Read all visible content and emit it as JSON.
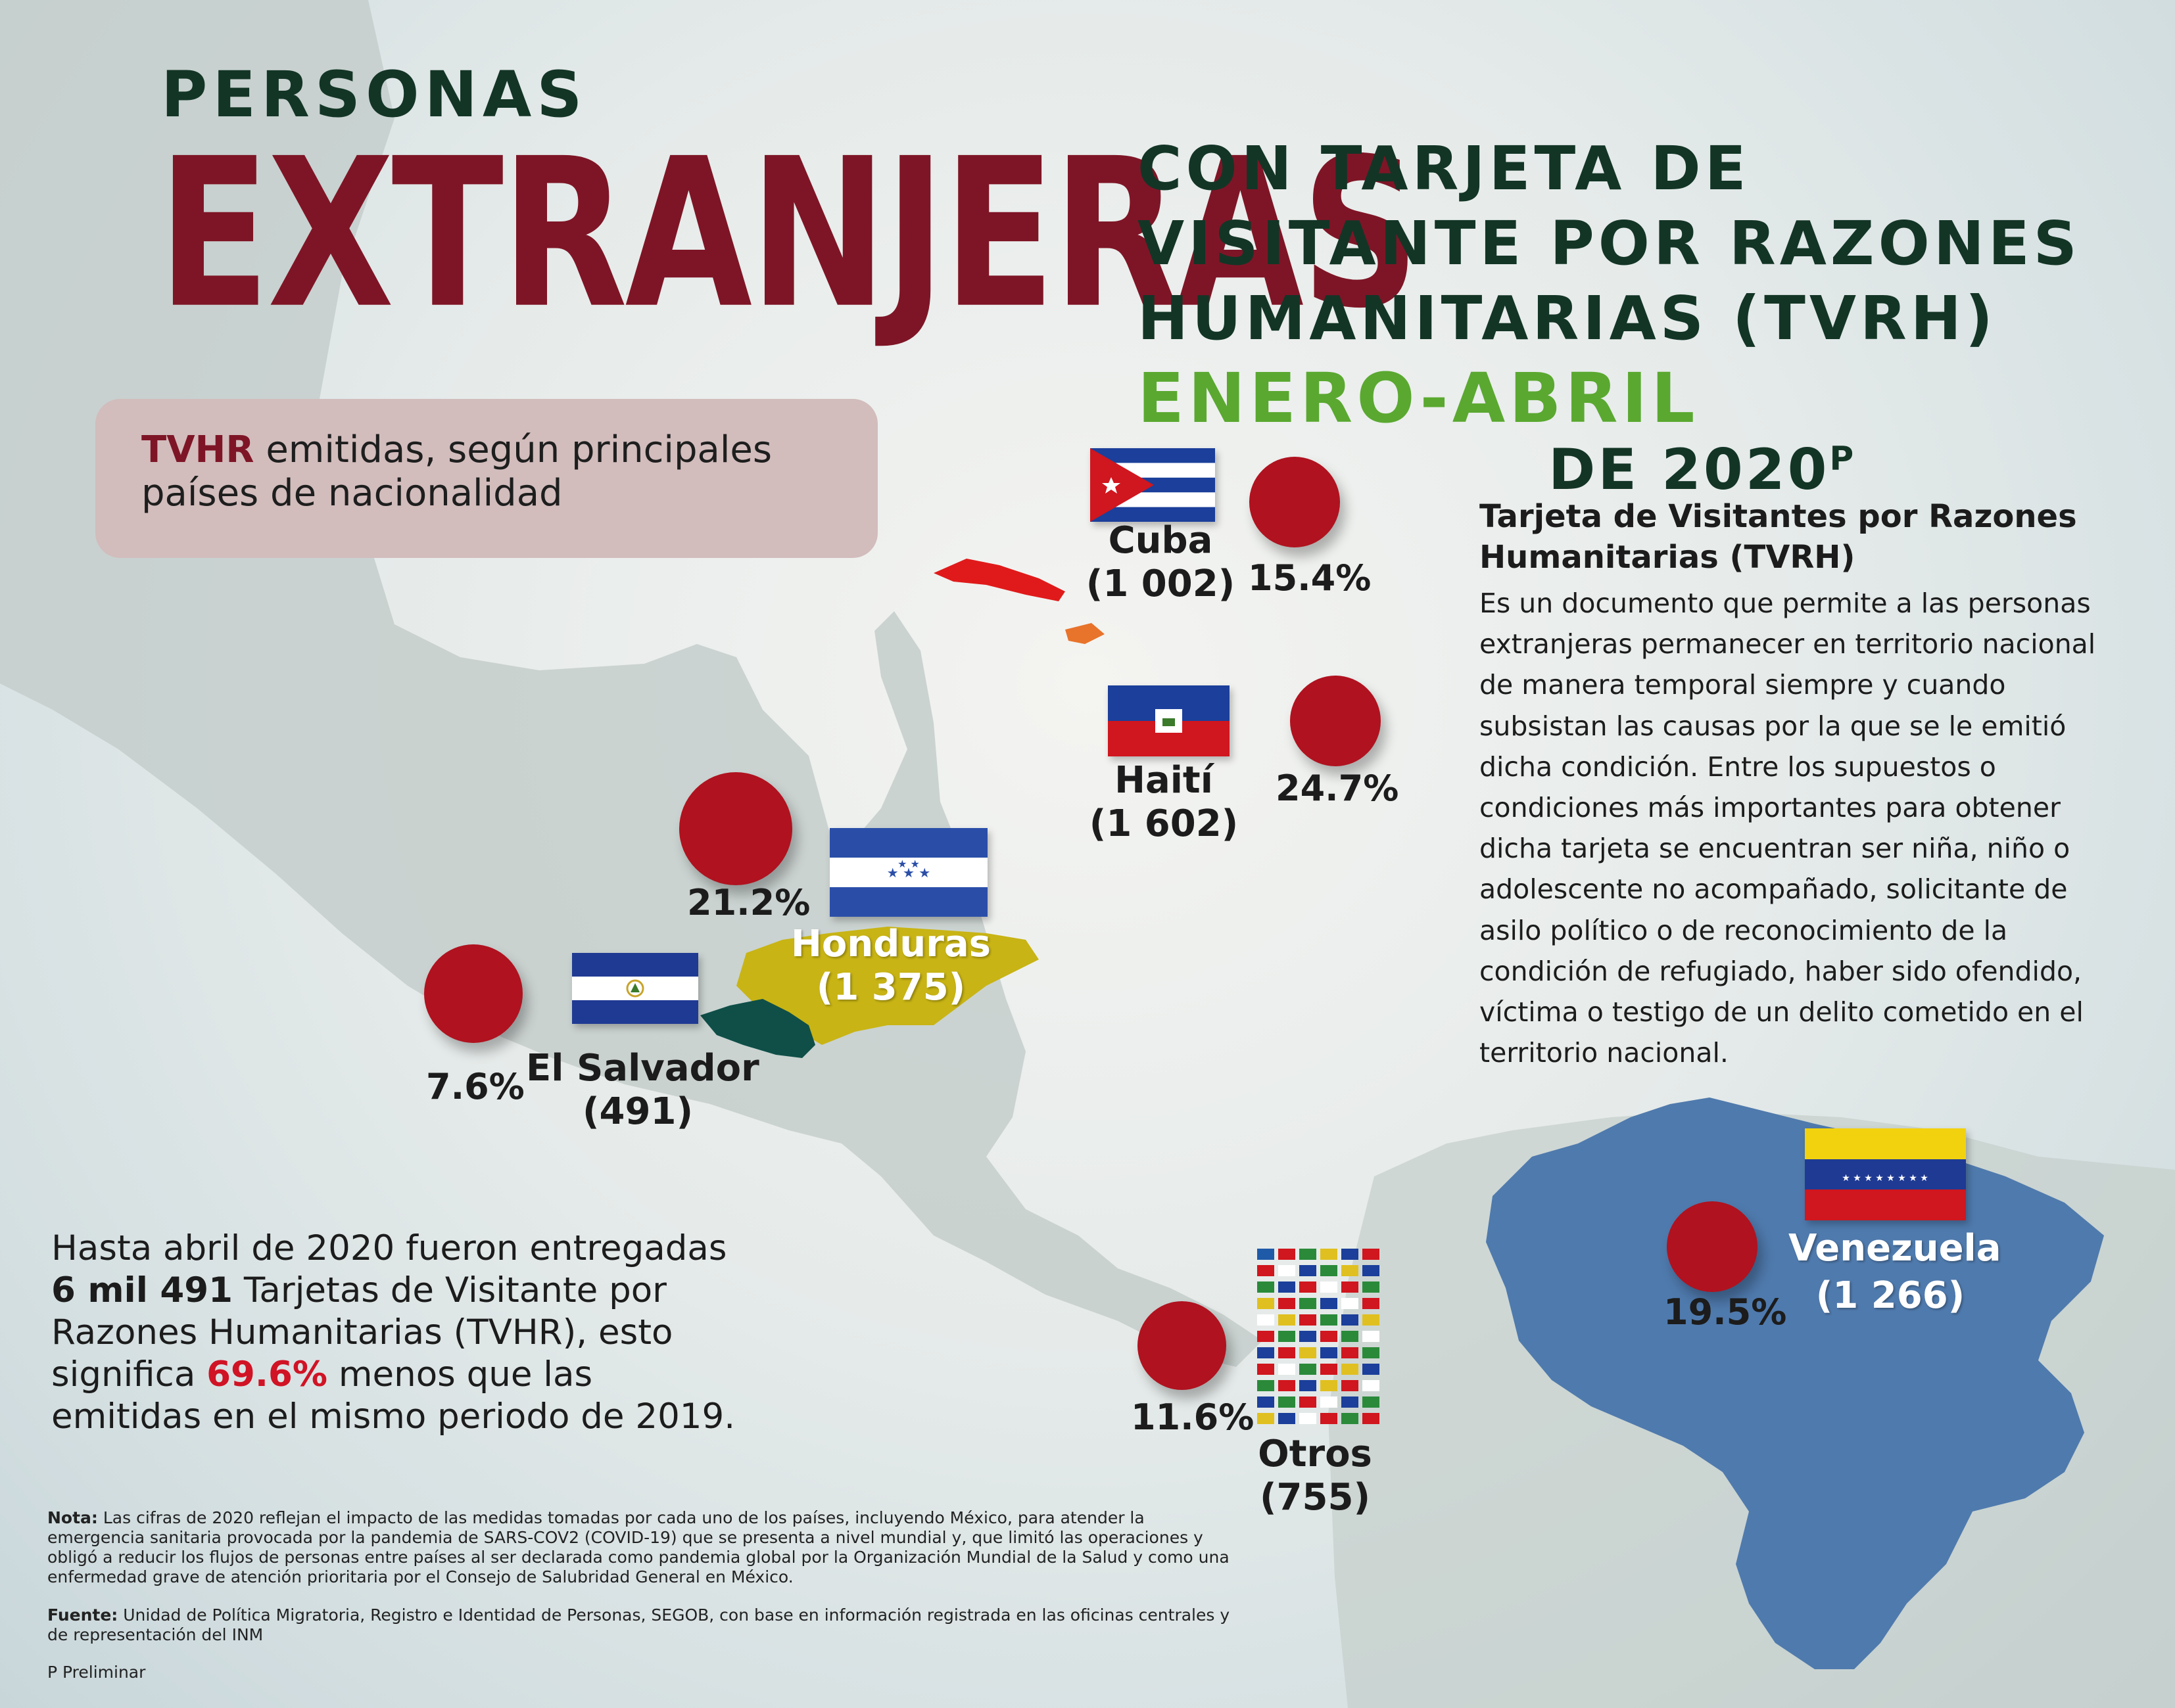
{
  "title": {
    "line1": "PERSONAS",
    "line2": "EXTRANJERAS",
    "sub1": "CON TARJETA DE",
    "sub2": "VISITANTE POR RAZONES",
    "sub3": "HUMANITARIAS (TVRH)",
    "period": "ENERO-ABRIL",
    "year": "DE 2020",
    "year_mark": "P"
  },
  "label_box": {
    "highlight": "TVHR",
    "text": " emitidas, según principales países de nacionalidad"
  },
  "countries": {
    "cuba": {
      "name": "Cuba",
      "count": "(1 002)",
      "pct": "15.4%"
    },
    "haiti": {
      "name": "Haití",
      "count": "(1 602)",
      "pct": "24.7%"
    },
    "honduras": {
      "name": "Honduras",
      "count": "(1 375)",
      "pct": "21.2%"
    },
    "el_salvador": {
      "name": "El Salvador",
      "count": "(491)",
      "pct": "7.6%"
    },
    "otros": {
      "name": "Otros",
      "count": "(755)",
      "pct": "11.6%"
    },
    "venezuela": {
      "name": "Venezuela",
      "count": "(1 266)",
      "pct": "19.5%"
    }
  },
  "description": {
    "title": "Tarjeta de Visitantes por Razones Humanitarias (TVRH)",
    "body": "Es un documento que permite a las personas extranjeras permanecer en territorio nacional de manera temporal siempre y cuando subsistan las causas por la que se le emitió dicha condición. Entre los supuestos o condiciones más importantes para obtener dicha tarjeta se encuentran ser niña, niño o adolescente no acompañado, solicitante de asilo político o de reconocimiento de la condición de refugiado, haber sido ofendido, víctima o testigo de un delito cometido en el territorio nacional."
  },
  "summary": {
    "part1": "Hasta abril de 2020 fueron entregadas ",
    "bold": "6 mil 491",
    "part2": " Tarjetas de Visitante por Razones Humanitarias (TVHR), esto significa ",
    "red": "69.6%",
    "part3": " menos que las emitidas en el mismo periodo de 2019."
  },
  "note": {
    "label": "Nota:",
    "text": " Las cifras de 2020 reflejan el impacto de las medidas tomadas por cada uno de los países, incluyendo México, para atender la emergencia sanitaria provocada por la pandemia de SARS-COV2 (COVID-19) que se presenta a nivel mundial y, que limitó las operaciones y obligó a reducir los flujos de personas entre países al ser declarada como pandemia global por la Organización Mundial de la Salud y como una enfermedad grave de atención prioritaria por el Consejo de Salubridad General en México."
  },
  "source": {
    "label": "Fuente:",
    "text": " Unidad de Política Migratoria, Registro e Identidad de Personas, SEGOB, con base en información registrada en las oficinas centrales y de representación del INM"
  },
  "preliminary": "P Preliminar",
  "colors": {
    "title_dark_green": "#133526",
    "title_maroon": "#7e1526",
    "period_green": "#5aa830",
    "circle_red": "#b0121f",
    "honduras_yellow": "#c8b414",
    "el_salvador_teal": "#0f4f48",
    "venezuela_blue": "#4f7aad",
    "cuba_red": "#e01a1a",
    "haiti_orange": "#e8732a",
    "land_gray": "#c2ccc9"
  }
}
